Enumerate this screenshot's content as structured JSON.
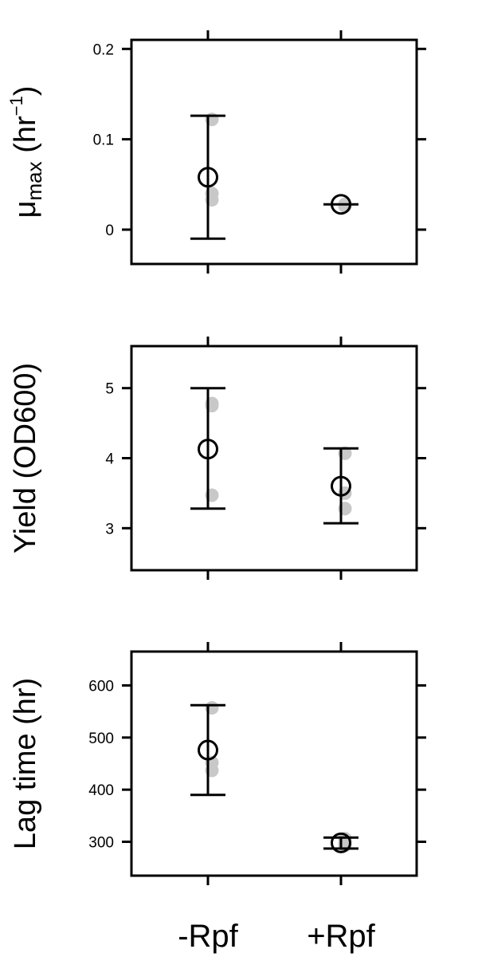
{
  "chart_data": [
    {
      "type": "scatter",
      "ylabel": {
        "symbol": "μ",
        "subscript": "max",
        "unit_open": " (hr",
        "superscript": "−1",
        "unit_close": ")"
      },
      "categories": [
        "-Rpf",
        "+Rpf"
      ],
      "ylim": [
        -0.038,
        0.21
      ],
      "yticks": [
        0,
        0.1,
        0.2
      ],
      "ytick_labels": [
        "0",
        "0.1",
        "0.2"
      ],
      "raw_points": [
        [
          0.122,
          0.04,
          0.033
        ],
        [
          0.027,
          0.028,
          0.026
        ]
      ],
      "means": [
        0.058,
        0.028
      ],
      "error_low": [
        -0.01,
        0.028
      ],
      "error_high": [
        0.126,
        0.028
      ]
    },
    {
      "type": "scatter",
      "ylabel": "Yield (OD600)",
      "categories": [
        "-Rpf",
        "+Rpf"
      ],
      "ylim": [
        2.4,
        5.6
      ],
      "yticks": [
        3,
        4,
        5
      ],
      "ytick_labels": [
        "3",
        "4",
        "5"
      ],
      "raw_points": [
        [
          4.78,
          4.75,
          3.47
        ],
        [
          4.07,
          3.5,
          3.28
        ]
      ],
      "means": [
        4.13,
        3.6
      ],
      "error_low": [
        3.28,
        3.07
      ],
      "error_high": [
        5.0,
        4.14
      ]
    },
    {
      "type": "scatter",
      "ylabel": "Lag time (hr)",
      "categories": [
        "-Rpf",
        "+Rpf"
      ],
      "ylim": [
        235,
        665
      ],
      "yticks": [
        300,
        400,
        500,
        600
      ],
      "ytick_labels": [
        "300",
        "400",
        "500",
        "600"
      ],
      "raw_points": [
        [
          557,
          452,
          437
        ],
        [
          306,
          298,
          293
        ]
      ],
      "means": [
        476,
        298
      ],
      "error_low": [
        390,
        287
      ],
      "error_high": [
        562,
        308
      ]
    }
  ],
  "x_axis": {
    "category_labels": [
      "-Rpf",
      "+Rpf"
    ]
  },
  "colors": {
    "points": "#c8c8c8",
    "mean_marker": "#000000",
    "axes": "#000000",
    "background": "#ffffff"
  }
}
